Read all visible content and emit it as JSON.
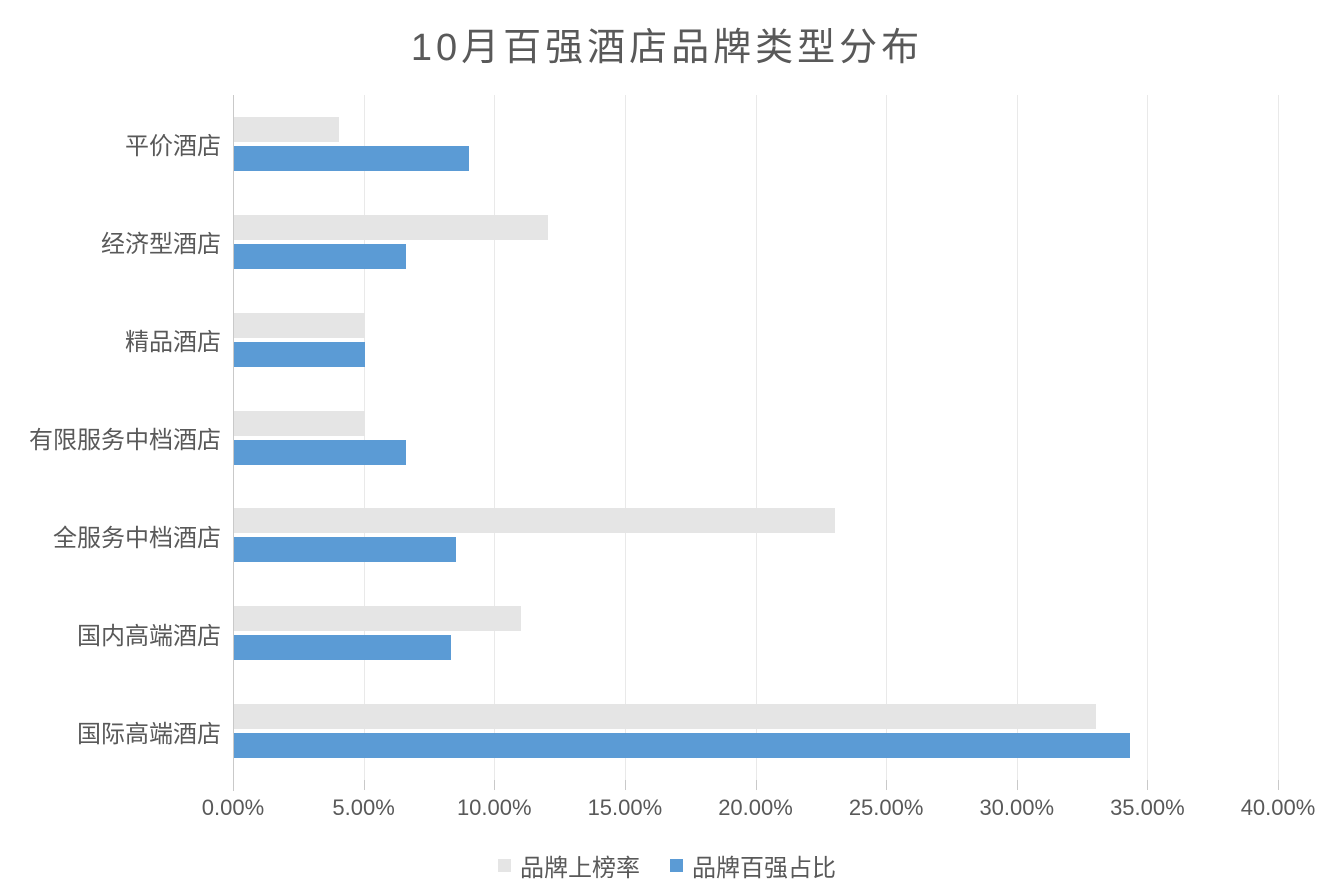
{
  "chart_data": {
    "type": "bar",
    "orientation": "horizontal",
    "title": "10月百强酒店品牌类型分布",
    "categories": [
      "平价酒店",
      "经济型酒店",
      "精品酒店",
      "有限服务中档酒店",
      "全服务中档酒店",
      "国内高端酒店",
      "国际高端酒店"
    ],
    "series": [
      {
        "name": "品牌上榜率",
        "color": "#e5e5e5",
        "values": [
          4.0,
          12.0,
          5.0,
          5.0,
          23.0,
          11.0,
          33.0
        ]
      },
      {
        "name": "品牌百强占比",
        "color": "#5b9bd5",
        "values": [
          9.0,
          6.6,
          5.0,
          6.6,
          8.5,
          8.3,
          34.3
        ]
      }
    ],
    "value_unit": "%",
    "x_axis": {
      "min": 0,
      "max": 40,
      "step": 5,
      "tick_labels": [
        "0.00%",
        "5.00%",
        "10.00%",
        "15.00%",
        "20.00%",
        "25.00%",
        "30.00%",
        "35.00%",
        "40.00%"
      ]
    },
    "grid": true,
    "legend_position": "bottom",
    "category_order": "top-to-bottom"
  },
  "colors": {
    "title_text": "#595959",
    "axis_text": "#595959",
    "gridline": "#e9e9e9",
    "axis_line": "#c9c9c9",
    "background": "#ffffff"
  }
}
